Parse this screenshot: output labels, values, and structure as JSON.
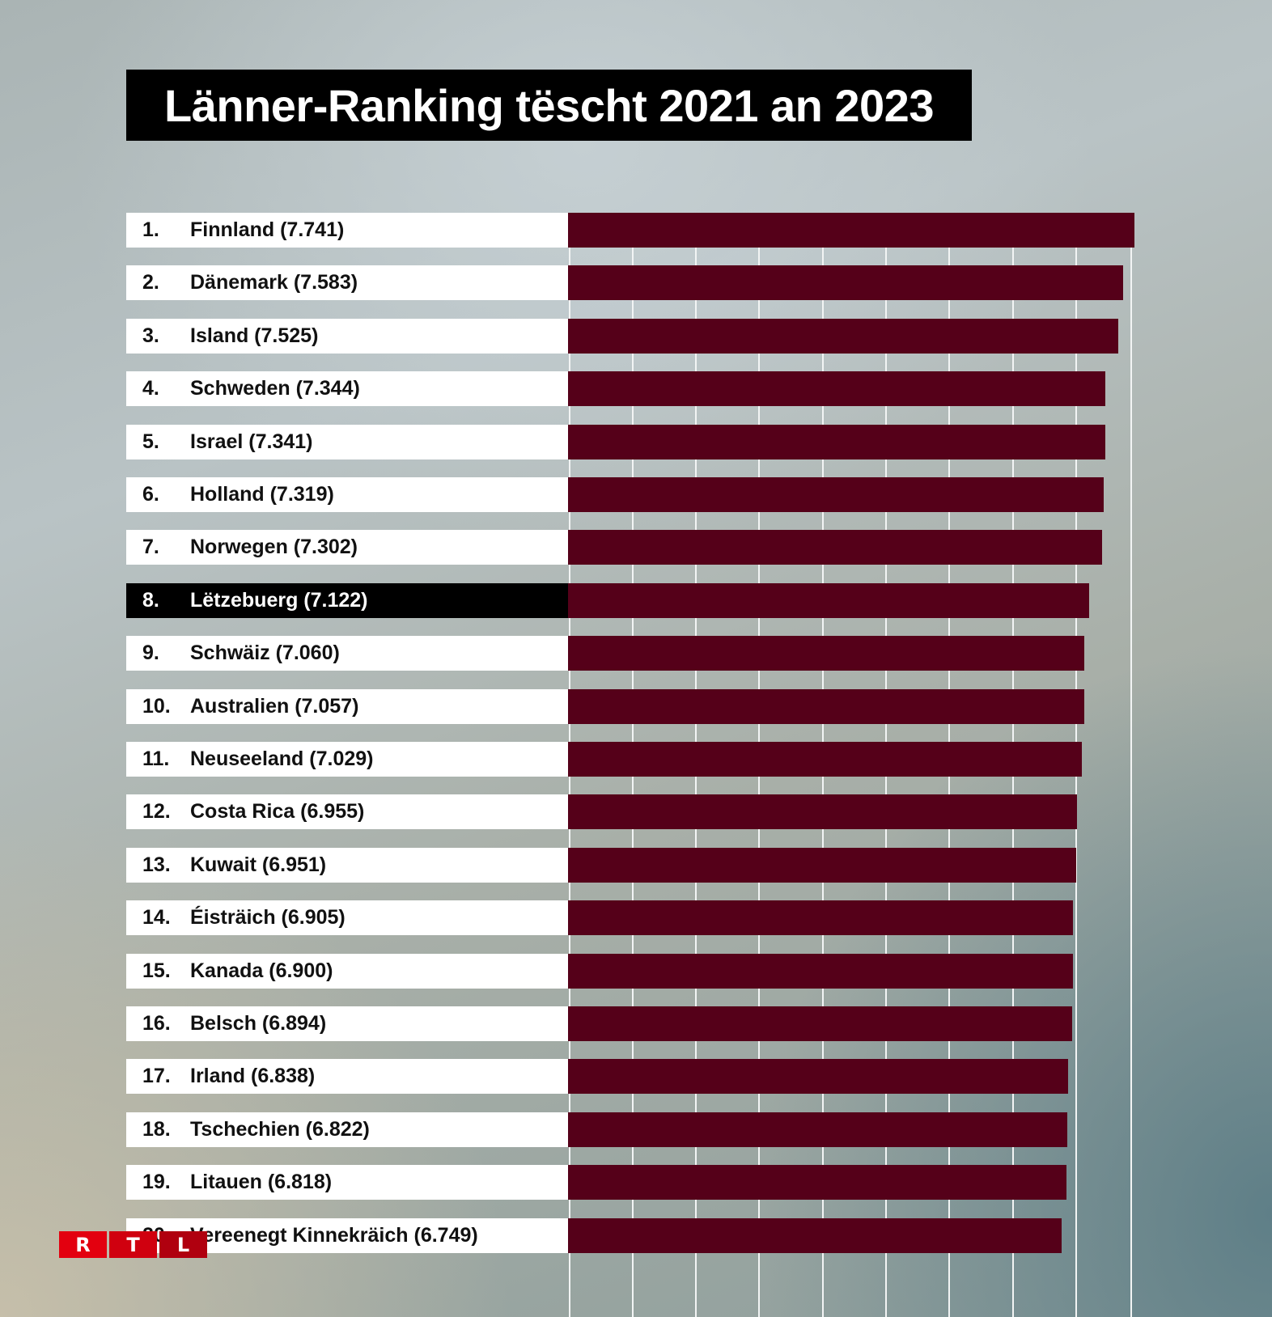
{
  "title": "Länner-Ranking tëscht 2021 an 2023",
  "logo": {
    "letters": [
      "R",
      "T",
      "L"
    ],
    "colors": [
      "#e3000f",
      "#d0000f",
      "#b0000f"
    ]
  },
  "colors": {
    "bar": "#550019",
    "label_bg": "#ffffff",
    "highlight_bg": "#000000",
    "title_bg": "#000000"
  },
  "chart_data": {
    "type": "bar",
    "orientation": "horizontal",
    "title": "Länner-Ranking tëscht 2021 an 2023",
    "xlabel": "",
    "ylabel": "",
    "grid": true,
    "highlight": "Lëtzebuerg",
    "categories": [
      "Finnland",
      "Dänemark",
      "Island",
      "Schweden",
      "Israel",
      "Holland",
      "Norwegen",
      "Lëtzebuerg",
      "Schwäiz",
      "Australien",
      "Neuseeland",
      "Costa Rica",
      "Kuwait",
      "Éisträich",
      "Kanada",
      "Belsch",
      "Irland",
      "Tschechien",
      "Litauen",
      "Vereenegt Kinnekräich"
    ],
    "values": [
      7.741,
      7.583,
      7.525,
      7.344,
      7.341,
      7.319,
      7.302,
      7.122,
      7.06,
      7.057,
      7.029,
      6.955,
      6.951,
      6.905,
      6.9,
      6.894,
      6.838,
      6.822,
      6.818,
      6.749
    ],
    "rows": [
      {
        "rank": "1.",
        "label": "Finnland (7.741)"
      },
      {
        "rank": "2.",
        "label": "Dänemark (7.583)"
      },
      {
        "rank": "3.",
        "label": "Island (7.525)"
      },
      {
        "rank": "4.",
        "label": "Schweden (7.344)"
      },
      {
        "rank": "5.",
        "label": "Israel (7.341)"
      },
      {
        "rank": "6.",
        "label": "Holland (7.319)"
      },
      {
        "rank": "7.",
        "label": "Norwegen (7.302)"
      },
      {
        "rank": "8.",
        "label": "Lëtzebuerg (7.122)",
        "highlight": true
      },
      {
        "rank": "9.",
        "label": "Schwäiz (7.060)"
      },
      {
        "rank": "10.",
        "label": "Australien (7.057)"
      },
      {
        "rank": "11.",
        "label": "Neuseeland (7.029)"
      },
      {
        "rank": "12.",
        "label": "Costa Rica (6.955)"
      },
      {
        "rank": "13.",
        "label": "Kuwait (6.951)"
      },
      {
        "rank": "14.",
        "label": "Éisträich (6.905)"
      },
      {
        "rank": "15.",
        "label": "Kanada (6.900)"
      },
      {
        "rank": "16.",
        "label": "Belsch (6.894)"
      },
      {
        "rank": "17.",
        "label": "Irland (6.838)"
      },
      {
        "rank": "18.",
        "label": "Tschechien (6.822)"
      },
      {
        "rank": "19.",
        "label": "Litauen (6.818)"
      },
      {
        "rank": "20.",
        "label": "Vereenegt Kinnekräich (6.749)"
      }
    ],
    "xlim": [
      0,
      7.75
    ]
  }
}
